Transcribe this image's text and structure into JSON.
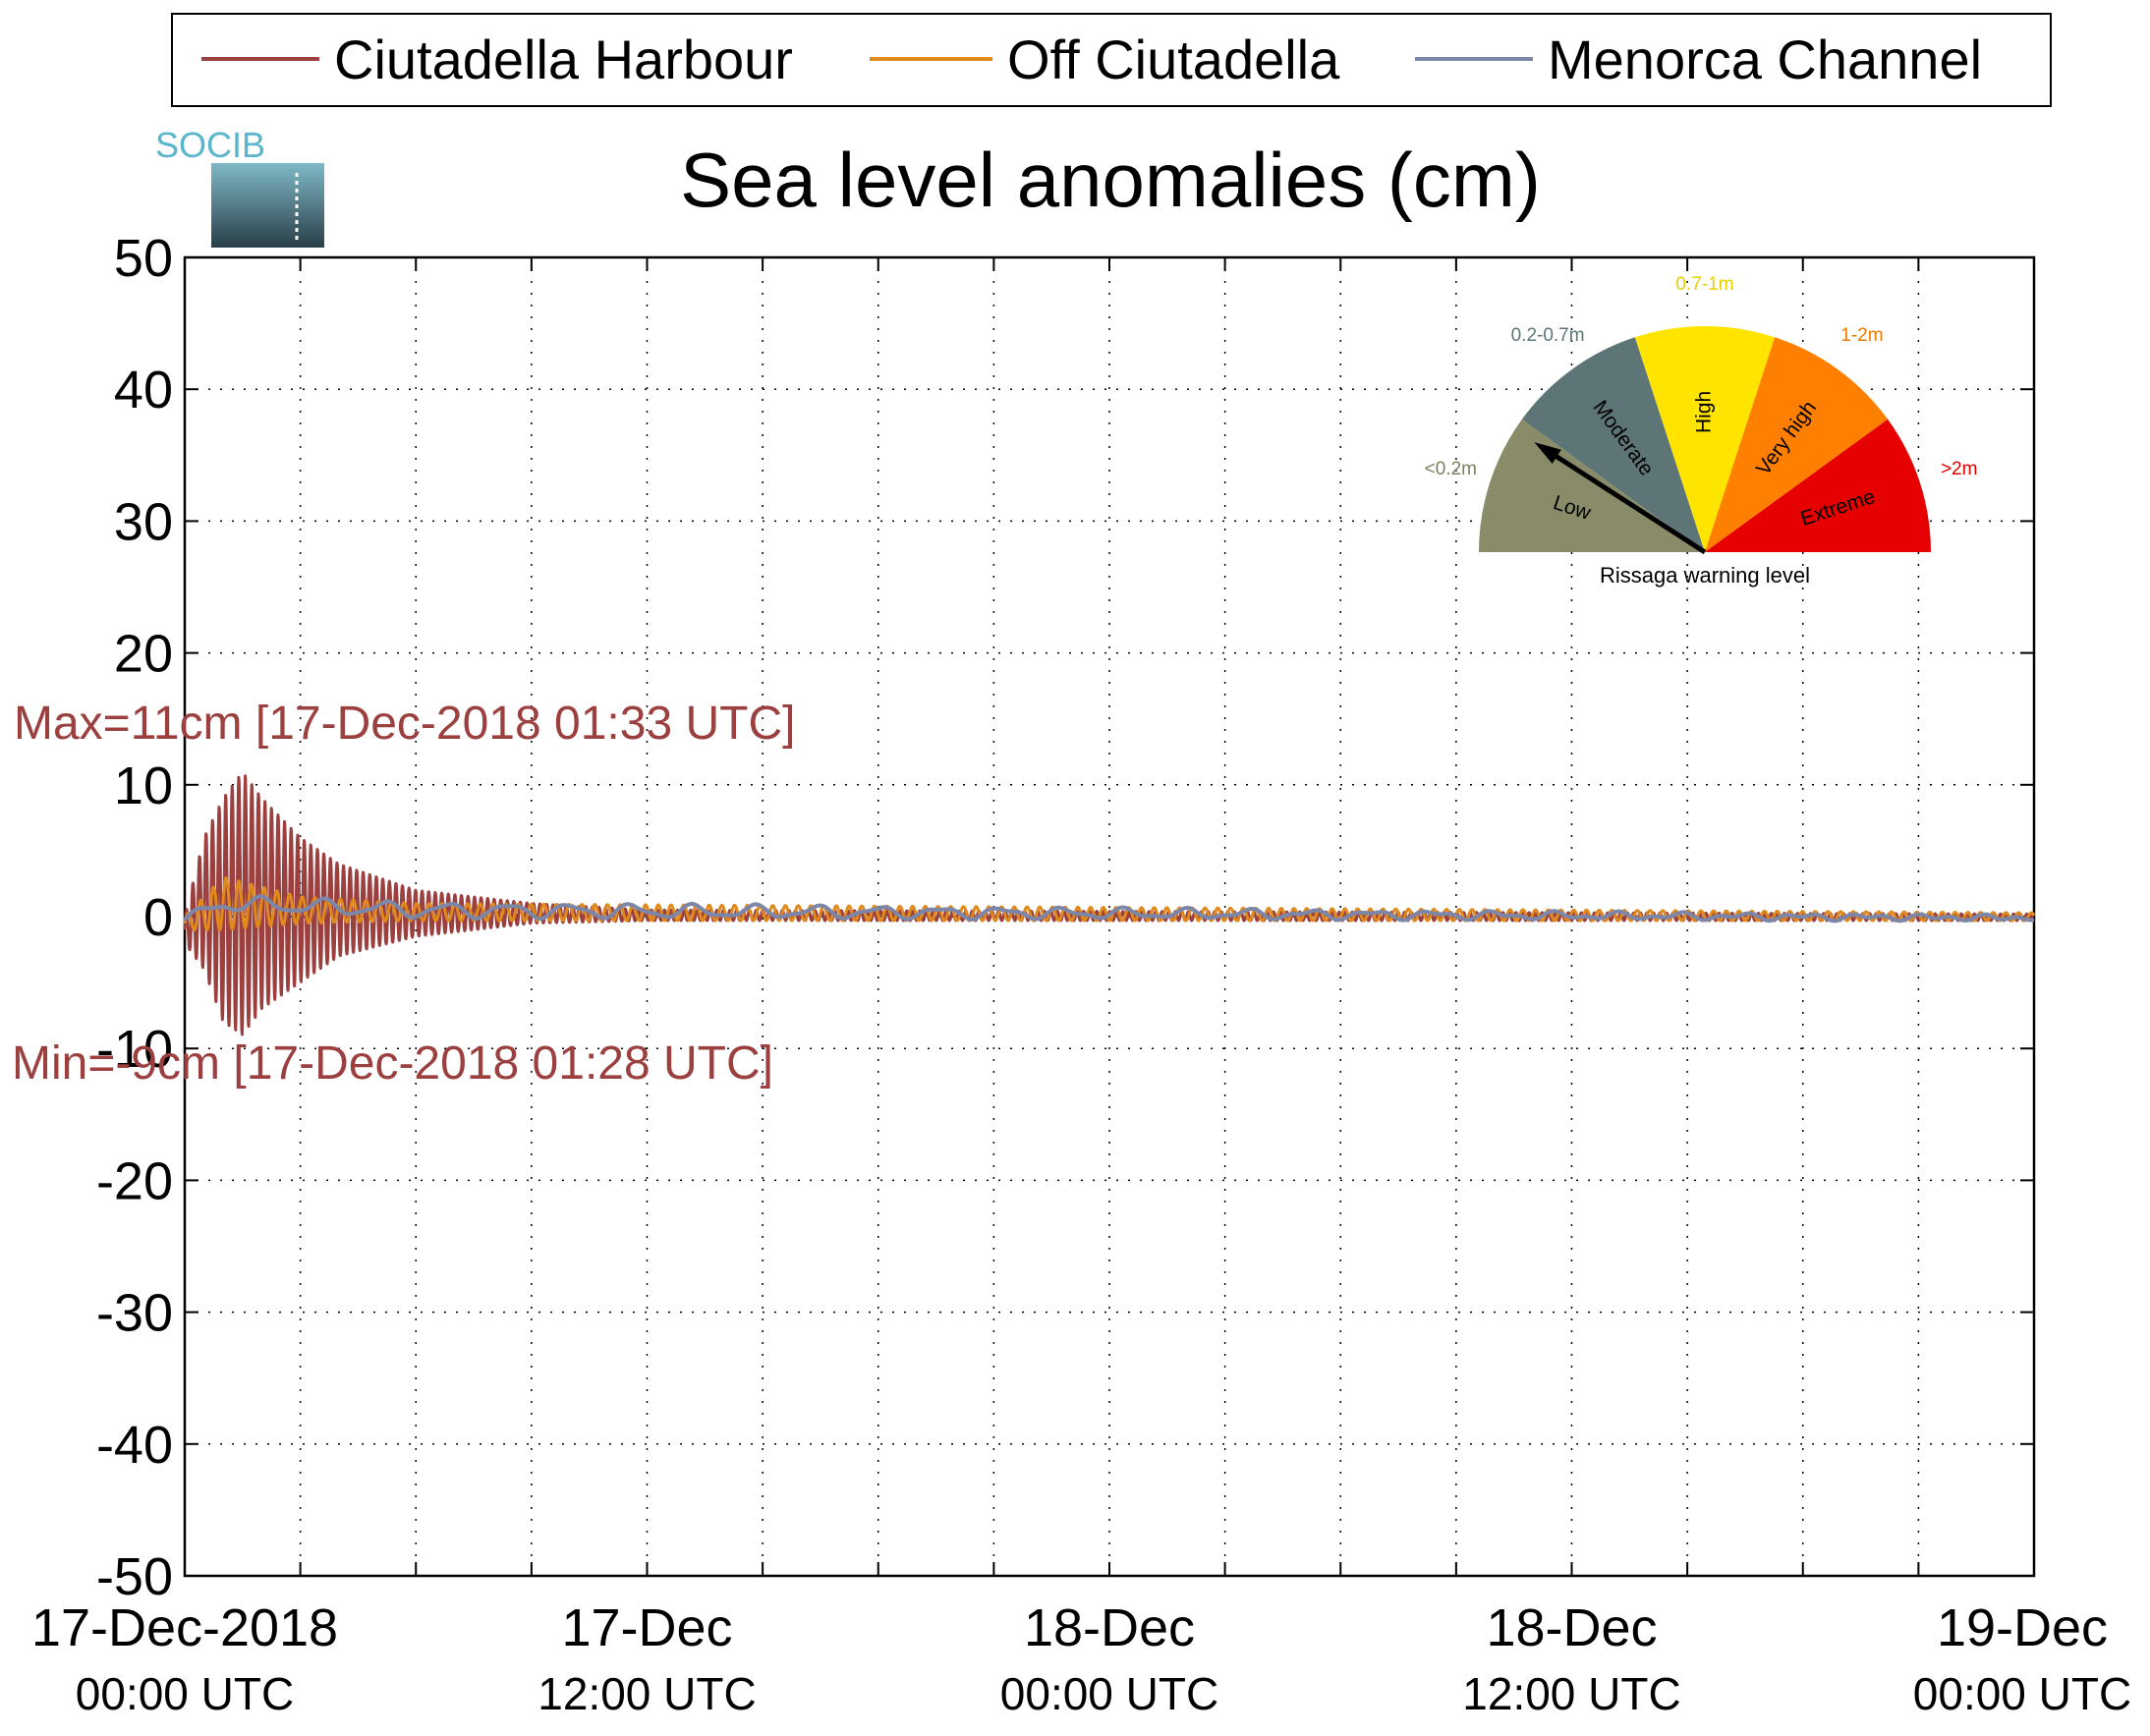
{
  "logo": {
    "text": "SOCIB"
  },
  "chart_data": {
    "type": "line",
    "title": "Sea level anomalies (cm)",
    "xlabel": "",
    "ylabel": "",
    "x_range": [
      "17-Dec-2018 00:00 UTC",
      "19-Dec-2018 00:00 UTC"
    ],
    "ylim": [
      -50,
      50
    ],
    "yticks": [
      50,
      40,
      30,
      20,
      10,
      0,
      -10,
      -20,
      -30,
      -40,
      -50
    ],
    "x_ticks_hours_from_start": [
      0,
      12,
      24,
      36,
      48
    ],
    "x_ticks_every_hours": 3,
    "grid": true,
    "legend_position": "top, above the chart",
    "xtick_labels": [
      {
        "date": "17-Dec-2018",
        "time": "00:00 UTC"
      },
      {
        "date": "17-Dec",
        "time": "12:00 UTC"
      },
      {
        "date": "18-Dec",
        "time": "00:00 UTC"
      },
      {
        "date": "18-Dec",
        "time": "12:00 UTC"
      },
      {
        "date": "19-Dec",
        "time": "00:00 UTC"
      }
    ],
    "series": [
      {
        "name": "Ciutadella Harbour",
        "color": "#9b3f3f",
        "description": "Damped oscillation (seiche) starting 17-Dec-2018, peak amplitude about 11 cm near 01:33 UTC, decaying to near 0 by 18:00 UTC",
        "envelope": [
          {
            "time": "17-Dec-2018 00:00 UTC",
            "max": 0,
            "min": -2
          },
          {
            "time": "17-Dec-2018 00:30 UTC",
            "max": 6,
            "min": -4
          },
          {
            "time": "17-Dec-2018 01:00 UTC",
            "max": 9,
            "min": -8
          },
          {
            "time": "17-Dec-2018 01:30 UTC",
            "max": 11,
            "min": -9
          },
          {
            "time": "17-Dec-2018 02:00 UTC",
            "max": 9,
            "min": -7
          },
          {
            "time": "17-Dec-2018 03:00 UTC",
            "max": 6,
            "min": -5
          },
          {
            "time": "17-Dec-2018 04:00 UTC",
            "max": 4,
            "min": -3
          },
          {
            "time": "17-Dec-2018 06:00 UTC",
            "max": 2,
            "min": -1.5
          },
          {
            "time": "17-Dec-2018 09:00 UTC",
            "max": 1,
            "min": -0.5
          },
          {
            "time": "17-Dec-2018 12:00 UTC",
            "max": 0.5,
            "min": -0.3
          },
          {
            "time": "19-Dec-2018 00:00 UTC",
            "max": 0.2,
            "min": -0.3
          }
        ],
        "max_label": "Max=11cm [17-Dec-2018 01:33 UTC]",
        "min_label": "Min=-9cm [17-Dec-2018 01:28 UTC]"
      },
      {
        "name": "Off Ciutadella",
        "color": "#e08a1e",
        "description": "Small oscillation up to about 3 cm early 17-Dec, near 0 afterwards",
        "envelope": [
          {
            "time": "17-Dec-2018 00:00 UTC",
            "max": 0,
            "min": -1
          },
          {
            "time": "17-Dec-2018 01:00 UTC",
            "max": 3,
            "min": -1
          },
          {
            "time": "17-Dec-2018 03:00 UTC",
            "max": 1.5,
            "min": -0.5
          },
          {
            "time": "17-Dec-2018 06:00 UTC",
            "max": 1,
            "min": -0.3
          },
          {
            "time": "19-Dec-2018 00:00 UTC",
            "max": 0.3,
            "min": -0.3
          }
        ]
      },
      {
        "name": "Menorca Channel",
        "color": "#7b86a8",
        "description": "Nearly flat line around 0 to 1 cm",
        "envelope": [
          {
            "time": "17-Dec-2018 00:00 UTC",
            "max": 0,
            "min": -0.5
          },
          {
            "time": "17-Dec-2018 01:00 UTC",
            "max": 1.5,
            "min": 0.5
          },
          {
            "time": "17-Dec-2018 06:00 UTC",
            "max": 1,
            "min": 0
          },
          {
            "time": "19-Dec-2018 00:00 UTC",
            "max": 0,
            "min": -0.2
          }
        ]
      }
    ]
  },
  "gauge": {
    "caption": "Rissaga warning level",
    "current_level": "Low",
    "segments": [
      {
        "name": "Low",
        "range": "<0.2m",
        "color": "#898b69",
        "range_color": "#7d8060"
      },
      {
        "name": "Moderate",
        "range": "0.2-0.7m",
        "color": "#5e7577",
        "range_color": "#5e7577"
      },
      {
        "name": "High",
        "range": "0.7-1m",
        "color": "#ffe400",
        "range_color": "#e8cf00"
      },
      {
        "name": "Very high",
        "range": "1-2m",
        "color": "#ff7f00",
        "range_color": "#f07a00"
      },
      {
        "name": "Extreme",
        "range": ">2m",
        "color": "#e60000",
        "range_color": "#e60000"
      }
    ]
  }
}
